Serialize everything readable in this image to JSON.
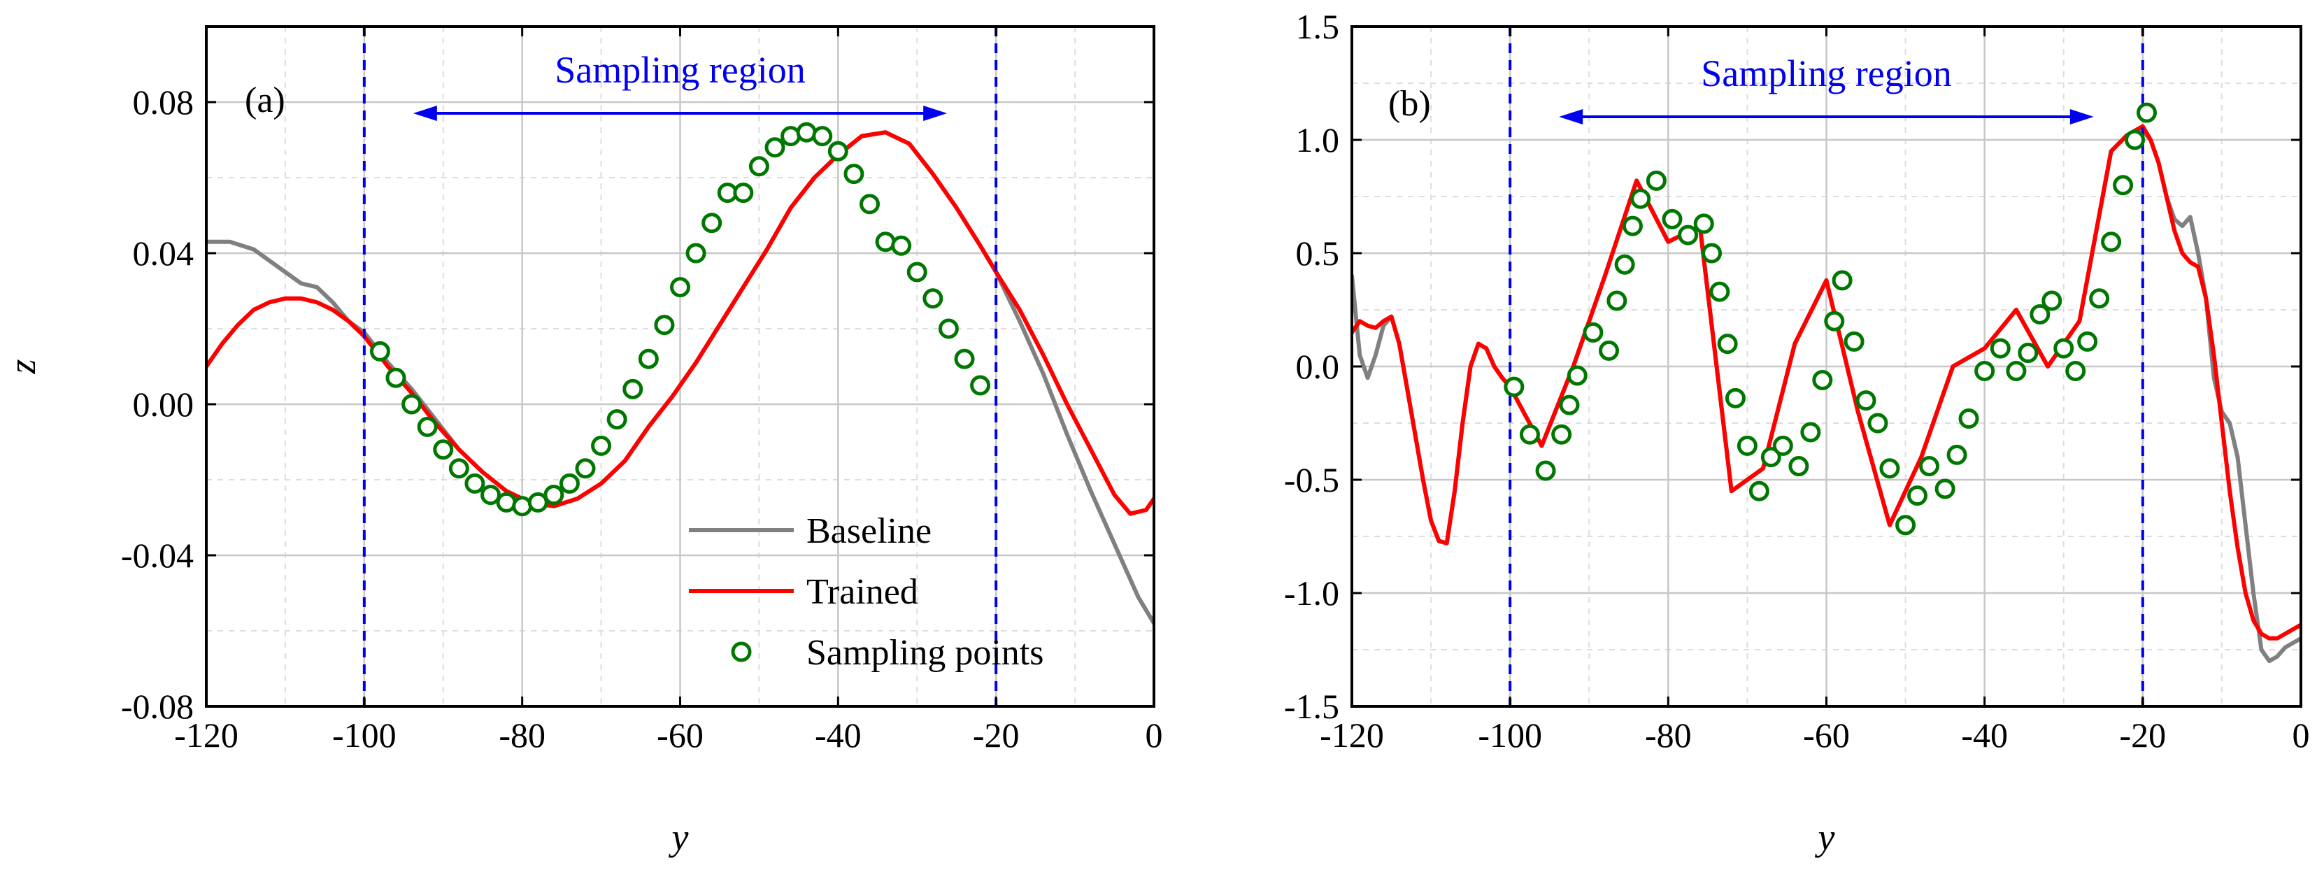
{
  "chart_data": [
    {
      "type": "line",
      "panel_label": "(a)",
      "xlabel": "y",
      "ylabel": "z",
      "xlim": [
        -120,
        0
      ],
      "ylim": [
        -0.08,
        0.1
      ],
      "xticks": [
        -120,
        -100,
        -80,
        -60,
        -40,
        -20,
        0
      ],
      "xtick_labels": [
        "-120",
        "-100",
        "-80",
        "-60",
        "-40",
        "-20",
        "0"
      ],
      "yticks": [
        -0.08,
        -0.04,
        0.0,
        0.04,
        0.08
      ],
      "ytick_labels": [
        "-0.08",
        "-0.04",
        "0.00",
        "0.04",
        "0.08"
      ],
      "grid": true,
      "sampling_region": {
        "label": "Sampling region",
        "x_start": -100,
        "x_end": -20
      },
      "legend": {
        "placement": "bottom-right",
        "entries": [
          "Baseline",
          "Trained",
          "Sampling points"
        ]
      },
      "colors": {
        "baseline": "#808080",
        "trained": "#ff0000",
        "points": "#007700",
        "region": "#0000ee"
      },
      "series": [
        {
          "name": "Baseline",
          "x": [
            -120,
            -117,
            -114,
            -112,
            -110,
            -108,
            -106,
            -104,
            -102,
            -100,
            -97,
            -94,
            -91,
            -88,
            -85,
            -82,
            -79,
            -76,
            -73,
            -70,
            -67,
            -64,
            -61,
            -58,
            -55,
            -52,
            -49,
            -46,
            -43,
            -40,
            -37,
            -34,
            -31,
            -28,
            -25,
            -22,
            -20,
            -17,
            -14,
            -11,
            -8,
            -5,
            -2,
            0
          ],
          "y": [
            0.043,
            0.043,
            0.041,
            0.038,
            0.035,
            0.032,
            0.031,
            0.027,
            0.022,
            0.019,
            0.011,
            0.004,
            -0.004,
            -0.012,
            -0.018,
            -0.023,
            -0.026,
            -0.027,
            -0.025,
            -0.021,
            -0.015,
            -0.006,
            0.002,
            0.011,
            0.021,
            0.031,
            0.041,
            0.052,
            0.06,
            0.066,
            0.071,
            0.072,
            0.069,
            0.061,
            0.052,
            0.042,
            0.035,
            0.022,
            0.008,
            -0.008,
            -0.023,
            -0.037,
            -0.051,
            -0.058
          ]
        },
        {
          "name": "Trained",
          "x": [
            -120,
            -118,
            -116,
            -114,
            -112,
            -110,
            -108,
            -106,
            -104,
            -102,
            -100,
            -97,
            -94,
            -91,
            -88,
            -85,
            -82,
            -79,
            -76,
            -73,
            -70,
            -67,
            -64,
            -61,
            -58,
            -55,
            -52,
            -49,
            -46,
            -43,
            -40,
            -37,
            -34,
            -31,
            -28,
            -25,
            -22,
            -20,
            -17,
            -14,
            -11,
            -8,
            -5,
            -3,
            -1,
            0
          ],
          "y": [
            0.01,
            0.016,
            0.021,
            0.025,
            0.027,
            0.028,
            0.028,
            0.027,
            0.025,
            0.022,
            0.018,
            0.01,
            0.003,
            -0.005,
            -0.012,
            -0.018,
            -0.023,
            -0.026,
            -0.027,
            -0.025,
            -0.021,
            -0.015,
            -0.006,
            0.002,
            0.011,
            0.021,
            0.031,
            0.041,
            0.052,
            0.06,
            0.066,
            0.071,
            0.072,
            0.069,
            0.061,
            0.052,
            0.042,
            0.035,
            0.025,
            0.013,
            0.0,
            -0.012,
            -0.024,
            -0.029,
            -0.028,
            -0.025
          ]
        },
        {
          "name": "Sampling points",
          "x": [
            -98,
            -96,
            -94,
            -92,
            -90,
            -88,
            -86,
            -84,
            -82,
            -80,
            -78,
            -76,
            -74,
            -72,
            -70,
            -68,
            -66,
            -64,
            -62,
            -60,
            -58,
            -56,
            -54,
            -52,
            -50,
            -48,
            -46,
            -44,
            -42,
            -40,
            -38,
            -36,
            -34,
            -32,
            -30,
            -28,
            -26,
            -24,
            -22
          ],
          "y": [
            0.014,
            0.007,
            0.0,
            -0.006,
            -0.012,
            -0.017,
            -0.021,
            -0.024,
            -0.026,
            -0.027,
            -0.026,
            -0.024,
            -0.021,
            -0.017,
            -0.011,
            -0.004,
            0.004,
            0.012,
            0.021,
            0.031,
            0.04,
            0.048,
            0.056,
            0.056,
            0.063,
            0.068,
            0.071,
            0.072,
            0.071,
            0.067,
            0.061,
            0.053,
            0.043,
            0.042,
            0.035,
            0.028,
            0.02,
            0.012,
            0.005
          ]
        }
      ]
    },
    {
      "type": "line",
      "panel_label": "(b)",
      "xlabel": "y",
      "ylabel": "",
      "xlim": [
        -120,
        0
      ],
      "ylim": [
        -1.5,
        1.5
      ],
      "xticks": [
        -120,
        -100,
        -80,
        -60,
        -40,
        -20,
        0
      ],
      "xtick_labels": [
        "-120",
        "-100",
        "-80",
        "-60",
        "-40",
        "-20",
        "0"
      ],
      "yticks": [
        -1.5,
        -1.0,
        -0.5,
        0.0,
        0.5,
        1.0,
        1.5
      ],
      "ytick_labels": [
        "-1.5",
        "-1.0",
        "-0.5",
        "0.0",
        "0.5",
        "1.0",
        "1.5"
      ],
      "grid": true,
      "sampling_region": {
        "label": "Sampling region",
        "x_start": -100,
        "x_end": -20
      },
      "colors": {
        "baseline": "#808080",
        "trained": "#ff0000",
        "points": "#007700",
        "region": "#0000ee"
      },
      "series": [
        {
          "name": "Baseline",
          "x": [
            -120,
            -119,
            -118,
            -117,
            -116,
            -115,
            -114,
            -113,
            -112,
            -111,
            -110,
            -109,
            -108,
            -107,
            -106,
            -105,
            -104,
            -103,
            -102,
            -101,
            -100,
            -96,
            -92,
            -88,
            -84,
            -80,
            -76,
            -72,
            -68,
            -64,
            -60,
            -56,
            -52,
            -48,
            -44,
            -40,
            -36,
            -32,
            -28,
            -24,
            -22,
            -20,
            -19,
            -18,
            -17,
            -16,
            -15,
            -14,
            -13,
            -12,
            -11,
            -10,
            -9,
            -8,
            -7,
            -6,
            -5,
            -4,
            -3,
            -2,
            -1,
            0
          ],
          "y": [
            0.4,
            0.05,
            -0.05,
            0.05,
            0.18,
            0.22,
            0.1,
            -0.1,
            -0.3,
            -0.5,
            -0.68,
            -0.77,
            -0.78,
            -0.55,
            -0.25,
            0.0,
            0.1,
            0.08,
            0.0,
            -0.05,
            -0.09,
            -0.35,
            0.0,
            0.4,
            0.82,
            0.55,
            0.62,
            -0.55,
            -0.45,
            0.1,
            0.38,
            -0.2,
            -0.7,
            -0.4,
            0.0,
            0.08,
            0.25,
            0.0,
            0.2,
            0.95,
            1.02,
            1.04,
            1.0,
            0.9,
            0.75,
            0.65,
            0.62,
            0.66,
            0.5,
            0.3,
            -0.05,
            -0.2,
            -0.25,
            -0.4,
            -0.7,
            -1.0,
            -1.25,
            -1.3,
            -1.28,
            -1.24,
            -1.22,
            -1.2
          ]
        },
        {
          "name": "Trained",
          "x": [
            -120,
            -119,
            -118,
            -117,
            -116,
            -115,
            -114,
            -113,
            -112,
            -111,
            -110,
            -109,
            -108,
            -107,
            -106,
            -105,
            -104,
            -103,
            -102,
            -101,
            -100,
            -96,
            -92,
            -88,
            -84,
            -80,
            -76,
            -72,
            -68,
            -64,
            -60,
            -56,
            -52,
            -48,
            -44,
            -40,
            -36,
            -32,
            -28,
            -24,
            -22,
            -20,
            -19,
            -18,
            -17,
            -16,
            -15,
            -14,
            -13,
            -12,
            -11,
            -10,
            -9,
            -8,
            -7,
            -6,
            -5,
            -4,
            -3,
            -2,
            -1,
            0
          ],
          "y": [
            0.15,
            0.2,
            0.18,
            0.17,
            0.2,
            0.22,
            0.1,
            -0.1,
            -0.3,
            -0.5,
            -0.68,
            -0.77,
            -0.78,
            -0.55,
            -0.25,
            0.0,
            0.1,
            0.08,
            0.0,
            -0.05,
            -0.09,
            -0.35,
            0.0,
            0.4,
            0.82,
            0.55,
            0.62,
            -0.55,
            -0.45,
            0.1,
            0.38,
            -0.2,
            -0.7,
            -0.4,
            0.0,
            0.08,
            0.25,
            0.0,
            0.2,
            0.95,
            1.02,
            1.06,
            1.0,
            0.9,
            0.75,
            0.6,
            0.5,
            0.46,
            0.44,
            0.3,
            0.05,
            -0.25,
            -0.55,
            -0.8,
            -1.0,
            -1.12,
            -1.18,
            -1.2,
            -1.2,
            -1.18,
            -1.16,
            -1.14
          ]
        },
        {
          "name": "Sampling points",
          "x": [
            -99.5,
            -97.5,
            -95.5,
            -93.5,
            -92.5,
            -91.5,
            -89.5,
            -87.5,
            -86.5,
            -85.5,
            -84.5,
            -83.5,
            -81.5,
            -79.5,
            -77.5,
            -75.5,
            -74.5,
            -73.5,
            -72.5,
            -71.5,
            -70,
            -68.5,
            -67,
            -65.5,
            -63.5,
            -62,
            -60.5,
            -59,
            -58,
            -56.5,
            -55,
            -53.5,
            -52,
            -50,
            -48.5,
            -47,
            -45,
            -43.5,
            -42,
            -40,
            -38,
            -36,
            -34.5,
            -33,
            -31.5,
            -30,
            -28.5,
            -27,
            -25.5,
            -24,
            -22.5,
            -21,
            -19.5
          ],
          "y": [
            -0.09,
            -0.3,
            -0.46,
            -0.3,
            -0.17,
            -0.04,
            0.15,
            0.07,
            0.29,
            0.45,
            0.62,
            0.74,
            0.82,
            0.65,
            0.58,
            0.63,
            0.5,
            0.33,
            0.1,
            -0.14,
            -0.35,
            -0.55,
            -0.4,
            -0.35,
            -0.44,
            -0.29,
            -0.06,
            0.2,
            0.38,
            0.11,
            -0.15,
            -0.25,
            -0.45,
            -0.7,
            -0.57,
            -0.44,
            -0.54,
            -0.39,
            -0.23,
            -0.02,
            0.08,
            -0.02,
            0.06,
            0.23,
            0.29,
            0.08,
            -0.02,
            0.11,
            0.3,
            0.55,
            0.8,
            1.0,
            1.12
          ]
        }
      ]
    }
  ]
}
